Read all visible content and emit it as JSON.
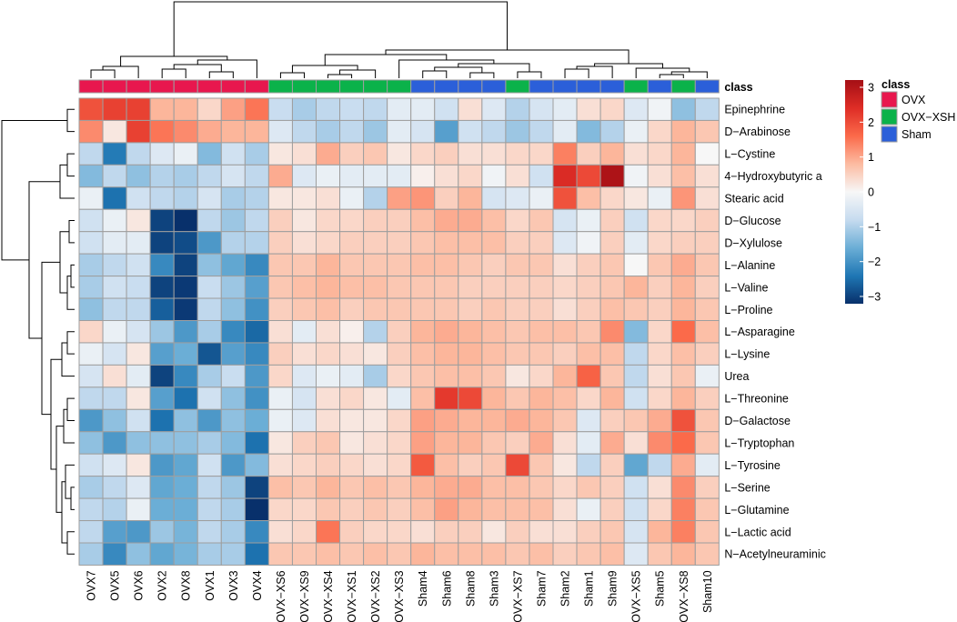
{
  "chart_data": {
    "type": "heatmap",
    "title": "",
    "columns": [
      "OVX7",
      "OVX5",
      "OVX6",
      "OVX2",
      "OVX8",
      "OVX1",
      "OVX3",
      "OVX4",
      "OVX-XS6",
      "OVX-XS9",
      "OVX-XS4",
      "OVX-XS1",
      "OVX-XS2",
      "OVX-XS3",
      "Sham4",
      "Sham6",
      "Sham8",
      "Sham3",
      "OVX-XS7",
      "Sham7",
      "Sham2",
      "Sham1",
      "Sham9",
      "OVX-XS5",
      "Sham5",
      "OVX-XS8",
      "Sham10"
    ],
    "column_class": [
      "OVX",
      "OVX",
      "OVX",
      "OVX",
      "OVX",
      "OVX",
      "OVX",
      "OVX",
      "OVX-XSH",
      "OVX-XSH",
      "OVX-XSH",
      "OVX-XSH",
      "OVX-XSH",
      "OVX-XSH",
      "Sham",
      "Sham",
      "Sham",
      "Sham",
      "OVX-XSH",
      "Sham",
      "Sham",
      "Sham",
      "Sham",
      "OVX-XSH",
      "Sham",
      "OVX-XSH",
      "Sham"
    ],
    "rows": [
      "Epinephrine",
      "D−Arabinose",
      "L−Cystine",
      "4−Hydroxybutyric a",
      "Stearic acid",
      "D−Glucose",
      "D−Xylulose",
      "L−Alanine",
      "L−Valine",
      "L−Proline",
      "L−Asparagine",
      "L−Lysine",
      "Urea",
      "L−Threonine",
      "D−Galactose",
      "L−Tryptophan",
      "L−Tyrosine",
      "L−Serine",
      "L−Glutamine",
      "L−Lactic acid",
      "N−Acetylneuraminic"
    ],
    "values": [
      [
        1.8,
        2.0,
        2.0,
        0.8,
        0.8,
        0.4,
        1.0,
        1.4,
        -0.7,
        -1.0,
        -0.8,
        -0.7,
        -0.8,
        -0.3,
        -0.3,
        -0.6,
        0.3,
        -0.4,
        -0.9,
        -0.5,
        -0.3,
        0.3,
        0.4,
        -0.4,
        -0.1,
        -1.2,
        -0.8
      ],
      [
        1.2,
        0.2,
        2.0,
        1.4,
        1.2,
        0.9,
        0.8,
        0.8,
        -0.4,
        -0.8,
        -1.0,
        -0.8,
        -1.1,
        -0.3,
        -0.5,
        -1.7,
        -0.6,
        -0.8,
        -1.1,
        -0.8,
        -0.3,
        -1.3,
        -0.9,
        -0.2,
        0.4,
        0.8,
        0.6
      ],
      [
        -0.8,
        -2.2,
        -0.8,
        -0.4,
        -0.2,
        -1.3,
        -0.6,
        -1.0,
        0.2,
        0.3,
        0.9,
        0.5,
        0.6,
        0.2,
        0.4,
        0.5,
        0.3,
        0.3,
        0.4,
        0.4,
        1.3,
        0.5,
        0.8,
        0.3,
        0.4,
        0.8,
        0.0
      ],
      [
        -1.3,
        -0.8,
        -1.2,
        -0.9,
        -1.0,
        -0.8,
        -0.5,
        -0.8,
        0.9,
        -0.4,
        -0.2,
        -0.3,
        -0.3,
        -0.3,
        0.1,
        0.3,
        0.4,
        -0.1,
        0.3,
        -0.6,
        2.3,
        1.9,
        2.9,
        -0.1,
        0.3,
        0.7,
        0.3
      ],
      [
        -0.2,
        -2.3,
        -0.6,
        -0.8,
        -0.9,
        -0.5,
        -1.0,
        -0.9,
        0.2,
        0.2,
        0.3,
        -0.2,
        -0.9,
        1.0,
        1.1,
        0.5,
        0.8,
        -0.5,
        -0.4,
        -0.2,
        1.8,
        0.7,
        0.4,
        0.2,
        -0.2,
        1.1,
        0.3
      ],
      [
        -0.6,
        -0.2,
        0.2,
        -2.8,
        -3.0,
        -0.8,
        -1.1,
        -0.8,
        0.5,
        0.2,
        0.4,
        0.4,
        0.5,
        0.5,
        0.7,
        0.9,
        0.9,
        0.7,
        0.4,
        0.6,
        -0.5,
        -0.2,
        0.5,
        -0.6,
        0.4,
        0.4,
        0.5
      ],
      [
        -0.6,
        -0.3,
        -0.3,
        -2.8,
        -2.7,
        -1.8,
        -0.9,
        -0.9,
        0.5,
        0.3,
        0.4,
        0.5,
        0.5,
        0.5,
        0.6,
        0.7,
        0.7,
        0.7,
        0.5,
        0.5,
        -0.4,
        -0.1,
        0.5,
        -0.3,
        0.4,
        0.5,
        0.5
      ],
      [
        -1.0,
        -0.8,
        -0.6,
        -2.0,
        -2.8,
        -1.2,
        -1.6,
        -2.0,
        0.6,
        0.6,
        0.8,
        0.6,
        0.6,
        0.6,
        0.7,
        0.7,
        0.6,
        0.5,
        0.6,
        0.6,
        0.3,
        0.5,
        0.6,
        0.0,
        0.6,
        0.9,
        0.6
      ],
      [
        -1.0,
        -0.6,
        -0.7,
        -2.8,
        -2.9,
        -0.7,
        -1.1,
        -1.7,
        0.6,
        0.7,
        0.8,
        0.7,
        0.7,
        0.6,
        0.6,
        0.6,
        0.5,
        0.5,
        0.5,
        0.5,
        0.4,
        0.5,
        0.6,
        0.8,
        0.5,
        0.8,
        0.5
      ],
      [
        -1.2,
        -0.8,
        -0.8,
        -2.5,
        -2.9,
        -0.8,
        -1.2,
        -1.9,
        0.5,
        0.6,
        0.7,
        0.5,
        0.6,
        0.6,
        0.6,
        0.6,
        0.5,
        0.6,
        0.5,
        0.5,
        0.3,
        0.5,
        0.7,
        0.6,
        0.5,
        0.8,
        0.6
      ],
      [
        0.4,
        -0.2,
        -0.5,
        -1.1,
        -1.8,
        -1.0,
        -2.0,
        -2.4,
        0.3,
        -0.3,
        0.3,
        0.1,
        -0.9,
        0.5,
        0.8,
        0.9,
        0.8,
        0.7,
        0.6,
        0.7,
        0.7,
        0.6,
        1.2,
        -1.3,
        0.4,
        1.5,
        0.7
      ],
      [
        -0.2,
        -0.5,
        0.2,
        -1.7,
        -1.5,
        -2.6,
        -1.7,
        -2.0,
        0.5,
        0.3,
        0.4,
        0.3,
        0.2,
        0.5,
        0.7,
        0.8,
        0.8,
        0.7,
        0.6,
        0.6,
        0.5,
        0.7,
        0.7,
        -0.8,
        0.4,
        0.7,
        0.5
      ],
      [
        -0.5,
        0.3,
        -0.3,
        -2.8,
        -2.0,
        -1.0,
        -0.7,
        -1.8,
        0.4,
        -0.4,
        -0.2,
        -0.3,
        -1.0,
        0.4,
        0.6,
        0.7,
        0.7,
        0.6,
        0.2,
        0.4,
        0.8,
        1.6,
        0.6,
        -0.8,
        0.3,
        0.6,
        -0.2
      ],
      [
        -0.8,
        -0.8,
        0.2,
        -1.7,
        -2.3,
        -0.6,
        -1.2,
        -1.9,
        -0.2,
        -0.5,
        0.3,
        0.4,
        0.2,
        -0.3,
        0.7,
        2.1,
        1.9,
        0.8,
        0.6,
        0.8,
        0.7,
        0.4,
        0.8,
        -0.6,
        0.4,
        0.8,
        0.5
      ],
      [
        -1.8,
        -1.2,
        -0.6,
        -2.3,
        -1.2,
        -1.8,
        -1.2,
        -1.5,
        -0.2,
        -0.4,
        0.3,
        0.2,
        0.2,
        0.4,
        1.0,
        0.9,
        0.8,
        0.8,
        0.9,
        0.8,
        0.6,
        -0.4,
        0.5,
        0.6,
        0.9,
        1.8,
        0.6
      ],
      [
        -1.2,
        -1.8,
        -1.2,
        -1.2,
        -1.2,
        -1.0,
        -1.3,
        -2.3,
        0.2,
        0.5,
        0.6,
        0.2,
        0.3,
        0.4,
        1.0,
        0.8,
        0.8,
        0.6,
        0.5,
        0.9,
        0.3,
        -0.3,
        0.9,
        0.3,
        1.2,
        1.5,
        0.6
      ],
      [
        -0.6,
        -0.4,
        0.2,
        -1.8,
        -1.6,
        -0.6,
        -1.8,
        -1.3,
        0.3,
        0.4,
        0.5,
        0.4,
        0.3,
        0.4,
        1.7,
        0.7,
        0.5,
        0.6,
        1.9,
        0.6,
        0.2,
        -0.8,
        0.5,
        -1.6,
        -0.8,
        0.9,
        -0.3
      ],
      [
        -1.0,
        -0.8,
        -0.4,
        -1.6,
        -1.5,
        -0.8,
        -1.1,
        -2.8,
        0.7,
        0.6,
        0.8,
        0.6,
        0.7,
        0.6,
        0.8,
        0.9,
        0.9,
        0.7,
        0.7,
        0.6,
        0.4,
        0.6,
        0.5,
        -0.6,
        0.3,
        1.2,
        0.5
      ],
      [
        -0.8,
        -0.9,
        -0.2,
        -1.5,
        -1.5,
        -0.8,
        -1.0,
        -3.2,
        0.4,
        0.4,
        0.6,
        0.5,
        0.6,
        0.5,
        0.7,
        1.0,
        0.8,
        0.7,
        0.7,
        0.7,
        0.3,
        -0.2,
        0.5,
        -0.6,
        0.4,
        1.3,
        0.6
      ],
      [
        -0.8,
        -1.7,
        -1.8,
        -1.1,
        -1.4,
        -0.8,
        -1.0,
        -2.0,
        0.3,
        0.4,
        1.4,
        0.5,
        0.4,
        0.4,
        0.3,
        0.5,
        0.5,
        0.2,
        0.5,
        0.3,
        0.3,
        0.5,
        0.6,
        -0.5,
        0.8,
        1.3,
        0.6
      ],
      [
        -1.0,
        -2.0,
        -1.2,
        -1.6,
        -1.4,
        -1.0,
        -1.0,
        -2.3,
        0.6,
        0.6,
        0.7,
        0.6,
        0.7,
        0.6,
        0.8,
        0.7,
        0.7,
        0.7,
        0.6,
        0.7,
        0.5,
        0.6,
        0.7,
        -0.4,
        0.6,
        0.8,
        0.6
      ]
    ],
    "color_scale": {
      "min": -3,
      "max": 3,
      "ticks": [
        3,
        2,
        1,
        0,
        -1,
        -2,
        -3
      ],
      "tick_labels": [
        "3",
        "2",
        "1",
        "0",
        "−1",
        "−2",
        "−3"
      ],
      "stops": [
        "#08306b",
        "#1f77b4",
        "#6baed6",
        "#c6dbef",
        "#f7f7f7",
        "#fcbba1",
        "#fb6a4a",
        "#de2d26",
        "#a50f15"
      ]
    },
    "annotation_label": "class",
    "legend": {
      "title": "class",
      "entries": [
        {
          "label": "OVX",
          "color": "#e8174e"
        },
        {
          "label": "OVX−XSH",
          "color": "#0bb24a"
        },
        {
          "label": "Sham",
          "color": "#2b5fd9"
        }
      ]
    }
  }
}
